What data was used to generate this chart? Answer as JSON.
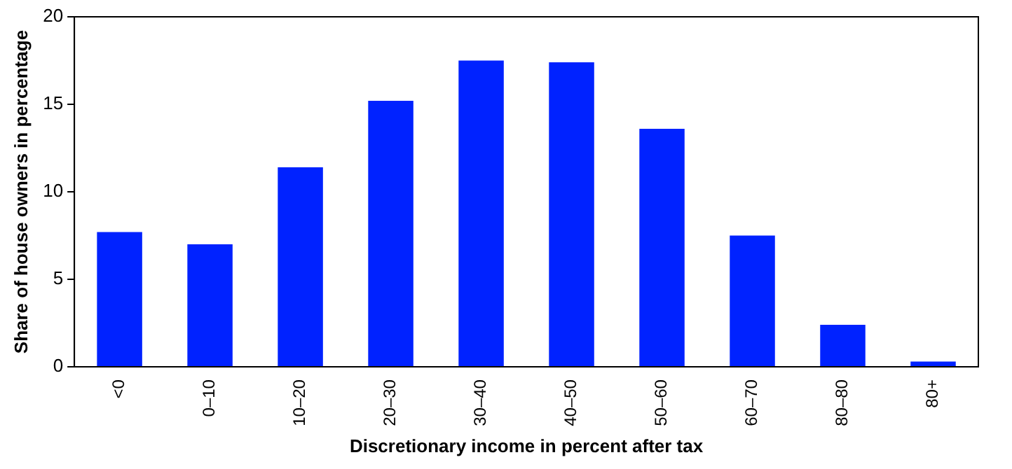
{
  "chart_data": {
    "type": "bar",
    "xlabel": "Discretionary income in percent after tax",
    "ylabel": "Share of house owners in percentage",
    "categories": [
      "<0",
      "0–10",
      "10–20",
      "20–30",
      "30–40",
      "40–50",
      "50–60",
      "60–70",
      "80–80",
      "80+"
    ],
    "values": [
      7.7,
      7.0,
      11.4,
      15.2,
      17.5,
      17.4,
      13.6,
      7.5,
      2.4,
      0.3
    ],
    "color": "#0022ff",
    "ylim": [
      0,
      20
    ],
    "yticks": [
      0,
      5,
      10,
      15,
      20
    ],
    "grid": false,
    "legend": false
  }
}
